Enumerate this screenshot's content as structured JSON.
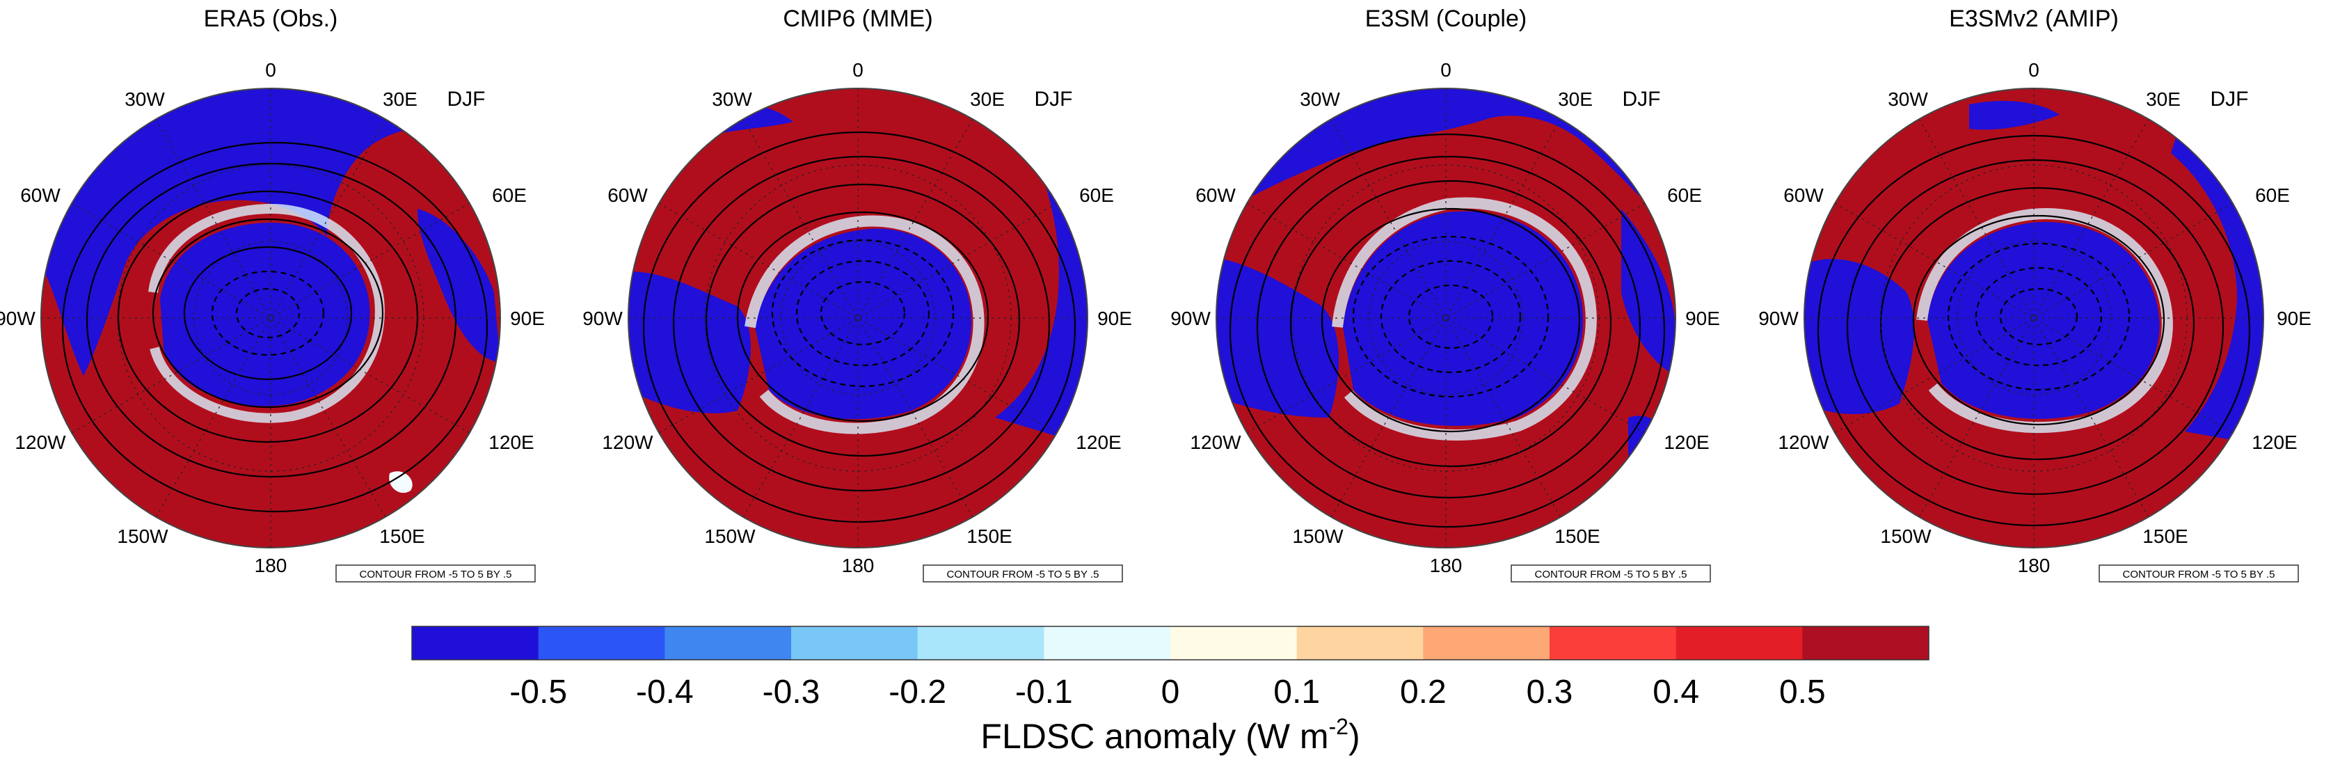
{
  "figure": {
    "season": "DJF",
    "contour_note": "CONTOUR FROM -5 TO 5 BY .5",
    "longitude_labels": [
      "0",
      "30E",
      "60E",
      "90E",
      "120E",
      "150E",
      "180",
      "150W",
      "120W",
      "90W",
      "60W",
      "30W"
    ]
  },
  "panels": [
    {
      "title": "ERA5 (Obs.)"
    },
    {
      "title": "CMIP6 (MME)"
    },
    {
      "title": "E3SM (Couple)"
    },
    {
      "title": "E3SMv2 (AMIP)"
    }
  ],
  "colorbar": {
    "ticks": [
      "-0.5",
      "-0.4",
      "-0.3",
      "-0.2",
      "-0.1",
      "0",
      "0.1",
      "0.2",
      "0.3",
      "0.4",
      "0.5"
    ],
    "colors": [
      "#1f0fd8",
      "#2c55f5",
      "#3f86f0",
      "#79c7f6",
      "#a9e5fb",
      "#e5fbfd",
      "#fffbe6",
      "#fed5a0",
      "#fea875",
      "#fb3e3a",
      "#e41e26",
      "#ad0f23"
    ],
    "label_main": "FLDSC anomaly (W m",
    "label_sup": "-2",
    "label_end": ")"
  },
  "colors": {
    "blue": "#2010d8",
    "red": "#b10e1d",
    "white_band": "#f4fcff"
  }
}
